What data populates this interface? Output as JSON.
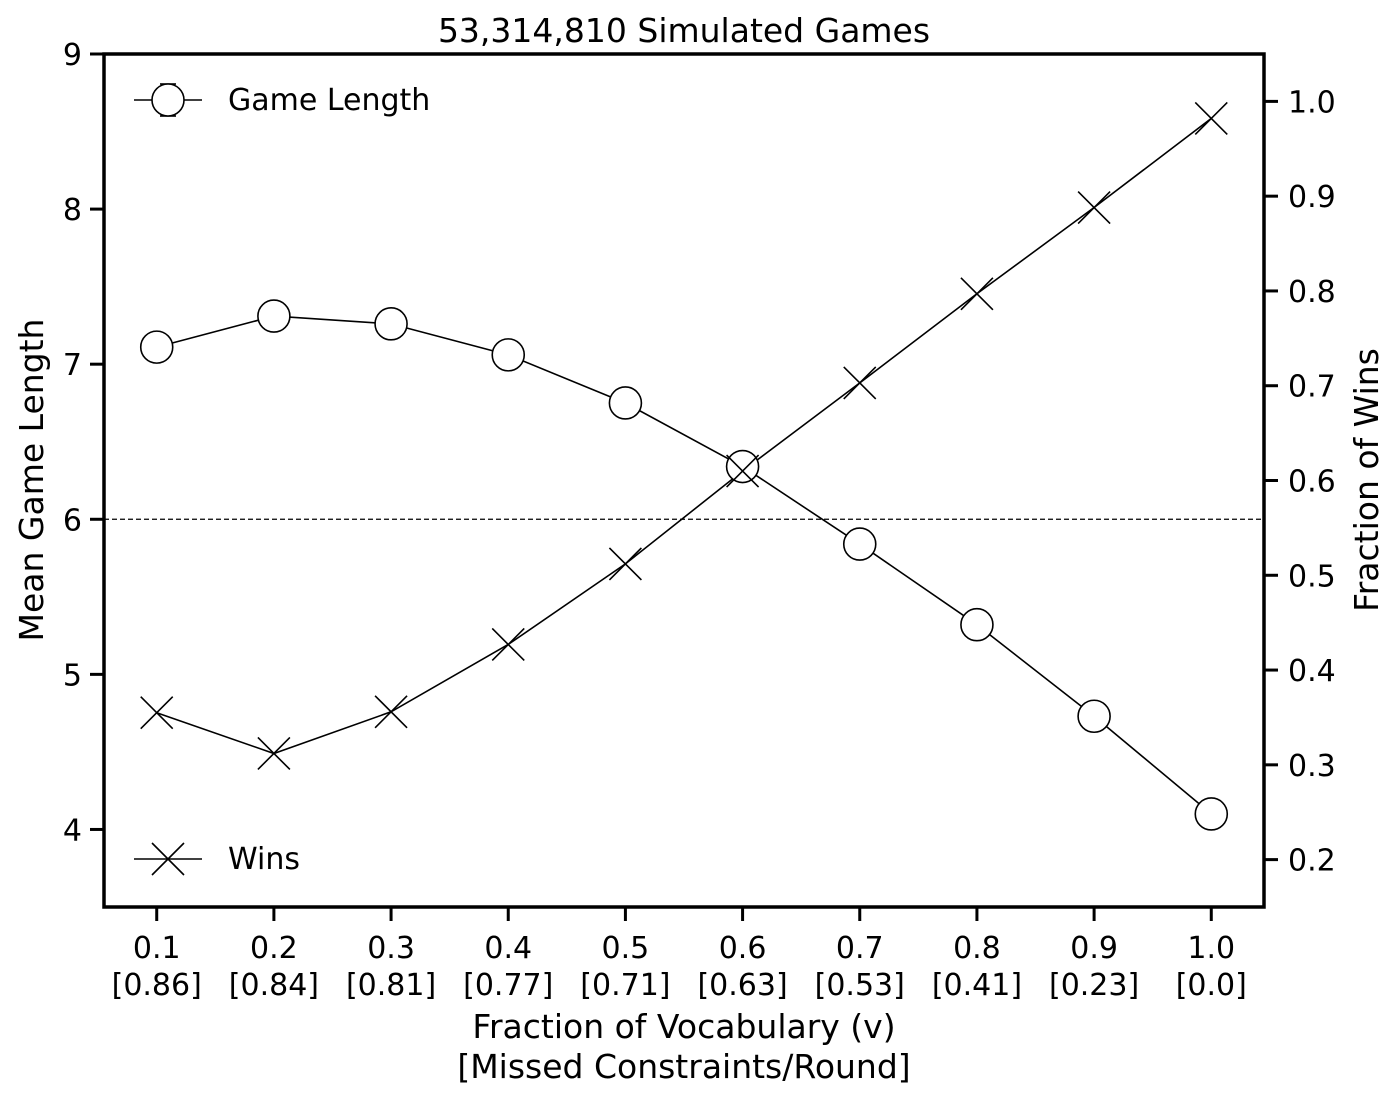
{
  "chart_data": {
    "type": "line",
    "title": "53,314,810 Simulated Games",
    "xlabel": [
      "Fraction of Vocabulary (v)",
      "[Missed Constraints/Round]"
    ],
    "ylabel_left": "Mean Game Length",
    "ylabel_right": "Fraction of Wins",
    "categories": [
      "0.1",
      "0.2",
      "0.3",
      "0.4",
      "0.5",
      "0.6",
      "0.7",
      "0.8",
      "0.9",
      "1.0"
    ],
    "category_sublabels": [
      "[0.86]",
      "[0.84]",
      "[0.81]",
      "[0.77]",
      "[0.71]",
      "[0.63]",
      "[0.53]",
      "[0.41]",
      "[0.23]",
      "[0.0]"
    ],
    "x": [
      0.1,
      0.2,
      0.3,
      0.4,
      0.5,
      0.6,
      0.7,
      0.8,
      0.9,
      1.0
    ],
    "xlim": [
      0.055,
      1.045
    ],
    "ylim_left": [
      3.5,
      9.0
    ],
    "yticks_left": [
      4,
      5,
      6,
      7,
      8,
      9
    ],
    "ylim_right": [
      0.15,
      1.05
    ],
    "yticks_right": [
      0.2,
      0.3,
      0.4,
      0.5,
      0.6,
      0.7,
      0.8,
      0.9,
      1.0
    ],
    "series": [
      {
        "name": "Game Length",
        "axis": "left",
        "marker": "circle",
        "values": [
          7.11,
          7.31,
          7.26,
          7.06,
          6.75,
          6.34,
          5.84,
          5.32,
          4.73,
          4.1
        ]
      },
      {
        "name": "Wins",
        "axis": "right",
        "marker": "x",
        "values": [
          0.355,
          0.312,
          0.356,
          0.427,
          0.512,
          0.61,
          0.703,
          0.797,
          0.888,
          0.982
        ]
      }
    ],
    "reference_line": {
      "axis": "left",
      "y": 6,
      "style": "dashed"
    },
    "legend_placement": [
      "top-left",
      "bottom-left"
    ],
    "grid": false
  }
}
